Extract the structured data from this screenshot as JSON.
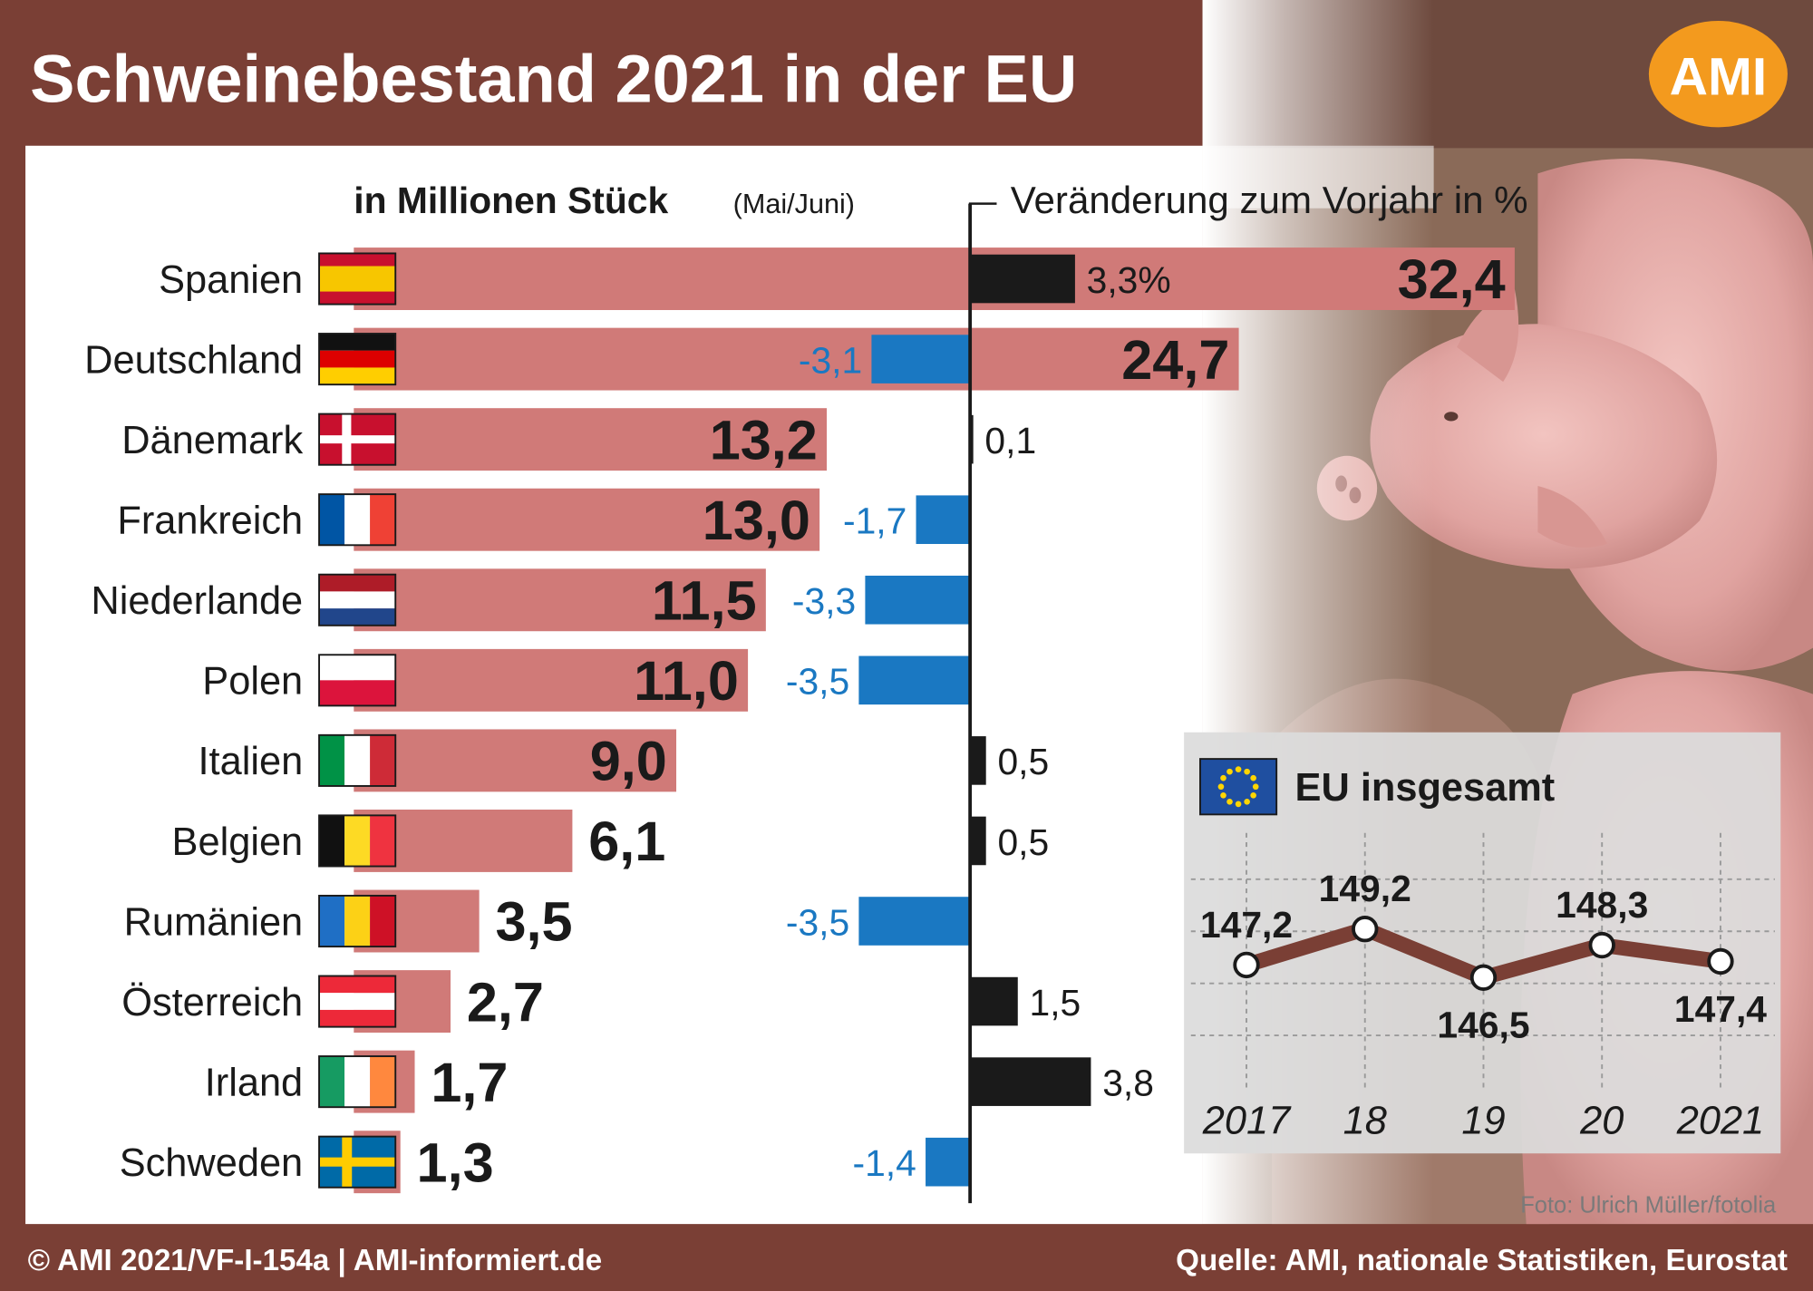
{
  "header": {
    "title": "Schweinebestand 2021 in der EU",
    "logo": "AMI"
  },
  "footer": {
    "left": "© AMI 2021/VF-I-154a | AMI-informiert.de",
    "right": "Quelle: AMI, nationale Statistiken, Eurostat"
  },
  "photo_credit": "Foto: Ulrich Müller/fotolia",
  "colors": {
    "frame": "#7a3f35",
    "bar_stock": "#d07a78",
    "change_negative": "#1a78c2",
    "change_positive": "#1a1a1a",
    "negative_label": "#1a78c2",
    "line": "#7a3f35"
  },
  "chart_data": [
    {
      "type": "bar",
      "title": "in Millionen Stück",
      "subtitle": "(Mai/Juni)",
      "categories": [
        "Spanien",
        "Deutschland",
        "Dänemark",
        "Frankreich",
        "Niederlande",
        "Polen",
        "Italien",
        "Belgien",
        "Rumänien",
        "Österreich",
        "Irland",
        "Schweden"
      ],
      "flags": [
        "spain-flag",
        "germany-flag",
        "denmark-flag",
        "france-flag",
        "netherlands-flag",
        "poland-flag",
        "italy-flag",
        "belgium-flag",
        "romania-flag",
        "austria-flag",
        "ireland-flag",
        "sweden-flag"
      ],
      "values": [
        32.4,
        24.7,
        13.2,
        13.0,
        11.5,
        11.0,
        9.0,
        6.1,
        3.5,
        2.7,
        1.7,
        1.3
      ],
      "labels": [
        "32,4",
        "24,7",
        "13,2",
        "13,0",
        "11,5",
        "11,0",
        "9,0",
        "6,1",
        "3,5",
        "2,7",
        "1,7",
        "1,3"
      ]
    },
    {
      "type": "bar",
      "title": "Veränderung zum Vorjahr in %",
      "categories": [
        "Spanien",
        "Deutschland",
        "Dänemark",
        "Frankreich",
        "Niederlande",
        "Polen",
        "Italien",
        "Belgien",
        "Rumänien",
        "Österreich",
        "Irland",
        "Schweden"
      ],
      "values": [
        3.3,
        -3.1,
        0.1,
        -1.7,
        -3.3,
        -3.5,
        0.5,
        0.5,
        -3.5,
        1.5,
        3.8,
        -1.4
      ],
      "labels": [
        "3,3%",
        "-3,1",
        "0,1",
        "-1,7",
        "-3,3",
        "-3,5",
        "0,5",
        "0,5",
        "-3,5",
        "1,5",
        "3,8",
        "-1,4"
      ]
    },
    {
      "type": "line",
      "title": "EU insgesamt",
      "x": [
        "2017",
        "18",
        "19",
        "20",
        "2021"
      ],
      "values": [
        147.2,
        149.2,
        146.5,
        148.3,
        147.4
      ],
      "labels": [
        "147,2",
        "149,2",
        "146,5",
        "148,3",
        "147,4"
      ],
      "flag": "eu-flag",
      "grid": true
    }
  ]
}
